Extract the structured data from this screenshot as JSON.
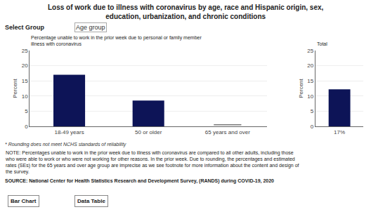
{
  "title": "Loss of work due to illness with coronavirus by age, race and Hispanic origin, sex, education, urbanization, and chronic conditions",
  "annotations": [
    "Select Group",
    "Age group",
    "* Rounding does not meet NCHS standards of reliability",
    "NOTE: Percentages unable to work in the prior week due to illness with coronavirus are compared to all other adults, including those who were able to work or who were not working for other reasons. In the prior week. Due to rounding, the percentages and estimated rates (SEs) for the 65 years and over age group are imprecise as we see footnote for more information about the content and design of the survey.",
    "SOURCE: National Center for Health Statistics Research and Development Survey, (RANDS) during COVID-19, 2020",
    "Bar Chart",
    "Data Table"
  ],
  "chart_data": [
    {
      "type": "bar",
      "title": "Percentage unable to work in the prior week due to personal or family member illness with coronavirus",
      "categories": [
        "18-49 years",
        "50 or older",
        "65 years and over"
      ],
      "series": [
        {
          "type": "bar",
          "color": "#0d1457",
          "values": [
            17.0,
            8.5,
            0.0
          ]
        },
        {
          "type": "scatter",
          "marker": "line-ew",
          "color": "#777777",
          "values": [
            null,
            null,
            0.5
          ]
        }
      ],
      "ylabel": "Percent",
      "ylim": [
        0,
        25
      ],
      "yticks": [
        0,
        5,
        10,
        15,
        20,
        25
      ],
      "grid": true
    },
    {
      "type": "bar",
      "title": "Total",
      "categories": [
        "17%"
      ],
      "values": [
        12.2
      ],
      "color": "#0d1457",
      "ylabel": "Percent",
      "ylim": [
        0,
        25
      ],
      "yticks": [
        0,
        5,
        10,
        15,
        20,
        25
      ],
      "grid": true
    }
  ]
}
